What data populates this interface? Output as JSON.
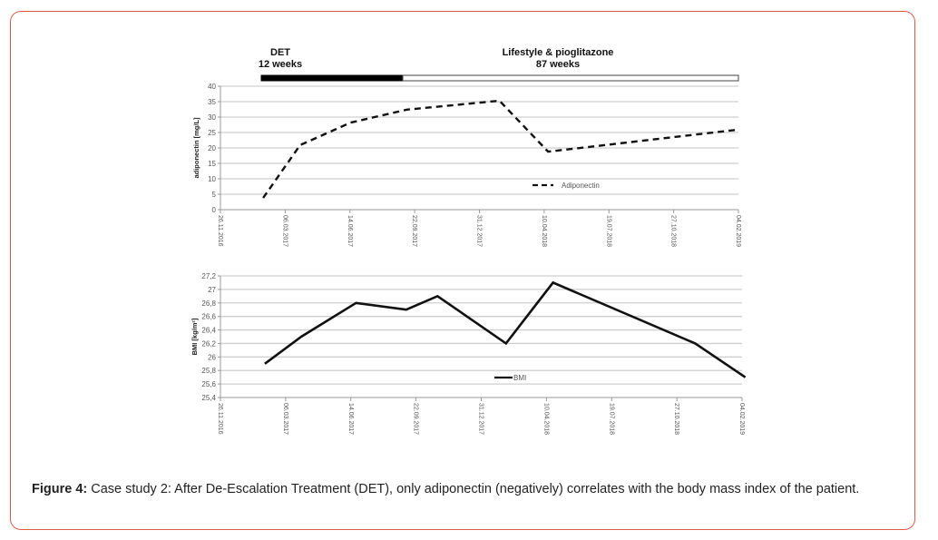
{
  "figure": {
    "caption_label": "Figure 4:",
    "caption_text": " Case study 2: After De-Escalation Treatment (DET), only adiponectin (negatively) correlates with the body mass index of the patient.",
    "frame_color": "#e05a4a"
  },
  "phases": [
    {
      "title": "DET",
      "duration": "12 weeks",
      "fill": "#000000"
    },
    {
      "title": "Lifestyle & pioglitazone",
      "duration": "87 weeks",
      "fill": "#ffffff"
    }
  ],
  "chart_data": [
    {
      "type": "line",
      "title": "",
      "xlabel": "",
      "ylabel": "adiponectin [mg/L]",
      "x_tick_labels": [
        "26.11.2016",
        "06.03.2017",
        "14.06.2017",
        "22.09.2017",
        "31.12.2017",
        "10.04.2018",
        "19.07.2018",
        "27.10.2018",
        "04.02.2019"
      ],
      "y_ticks": [
        0,
        5,
        10,
        15,
        20,
        25,
        30,
        35,
        40
      ],
      "y_tick_labels": [
        "0",
        "5",
        "10",
        "15",
        "20",
        "25",
        "30",
        "35",
        "40"
      ],
      "ylim": [
        0,
        40
      ],
      "x_range_days": [
        0,
        800
      ],
      "grid": true,
      "legend_position": "lower-right",
      "series": [
        {
          "name": "Adiponectin",
          "style": "dashed",
          "color": "#111111",
          "x_days": [
            66,
            123,
            201,
            288,
            431,
            506,
            799
          ],
          "values": [
            3.8,
            20.9,
            28.2,
            32.4,
            35.3,
            18.8,
            25.9
          ]
        }
      ]
    },
    {
      "type": "line",
      "title": "",
      "xlabel": "",
      "ylabel": "BMI [kg/m²]",
      "x_tick_labels": [
        "26.11.2016",
        "06.03.2017",
        "14.06.2017",
        "22.09.2017",
        "31.12.2017",
        "10.04.2018",
        "19.07.2018",
        "27.10.2018",
        "04.02.2019"
      ],
      "y_ticks": [
        25.4,
        25.6,
        25.8,
        26.0,
        26.2,
        26.4,
        26.6,
        26.8,
        27.0,
        27.2
      ],
      "y_tick_labels": [
        "25,4",
        "25,6",
        "25,8",
        "26",
        "26,2",
        "26,4",
        "26,6",
        "26,8",
        "27",
        "27,2"
      ],
      "ylim": [
        25.4,
        27.2
      ],
      "x_range_days": [
        0,
        800
      ],
      "grid": true,
      "legend_position": "lower-center",
      "series": [
        {
          "name": "BMI",
          "style": "solid",
          "color": "#111111",
          "x_days": [
            68,
            124,
            208,
            285,
            333,
            438,
            510,
            728,
            805
          ],
          "values": [
            25.9,
            26.3,
            26.8,
            26.7,
            26.9,
            26.2,
            27.1,
            26.2,
            25.7
          ]
        }
      ]
    }
  ]
}
